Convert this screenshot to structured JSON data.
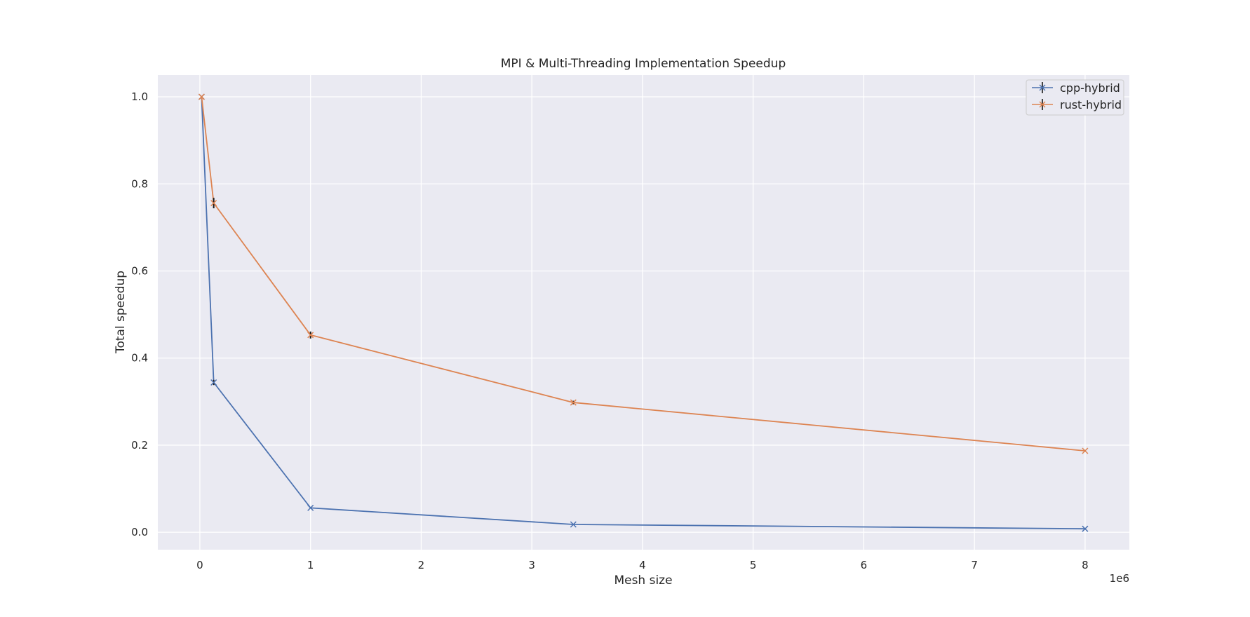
{
  "chart_data": {
    "type": "line",
    "title": "MPI & Multi-Threading Implementation Speedup",
    "xlabel": "Mesh size",
    "ylabel": "Total speedup",
    "x_offset_label": "1e6",
    "x_scale_factor": 1000000,
    "xlim": [
      -380000,
      8400000
    ],
    "ylim": [
      -0.04,
      1.05
    ],
    "xticks": [
      0,
      1000000,
      2000000,
      3000000,
      4000000,
      5000000,
      6000000,
      7000000,
      8000000
    ],
    "xtick_labels": [
      "0",
      "1",
      "2",
      "3",
      "4",
      "5",
      "6",
      "7",
      "8"
    ],
    "yticks": [
      0.0,
      0.2,
      0.4,
      0.6,
      0.8,
      1.0
    ],
    "ytick_labels": [
      "0.0",
      "0.2",
      "0.4",
      "0.6",
      "0.8",
      "1.0"
    ],
    "grid": true,
    "legend_position": "top-right",
    "series": [
      {
        "name": "cpp-hybrid",
        "color": "#4c72b0",
        "marker": "x",
        "x": [
          15625,
          125000,
          1000000,
          3375000,
          8000000
        ],
        "y": [
          1.0,
          0.344,
          0.056,
          0.018,
          0.008
        ],
        "yerr": [
          0.0,
          0.006,
          0.001,
          0.0005,
          0.0003
        ]
      },
      {
        "name": "rust-hybrid",
        "color": "#dd8452",
        "marker": "x",
        "x": [
          15625,
          125000,
          1000000,
          3375000,
          8000000
        ],
        "y": [
          1.0,
          0.756,
          0.453,
          0.298,
          0.187
        ],
        "yerr": [
          0.0,
          0.012,
          0.008,
          0.004,
          0.002
        ]
      }
    ]
  }
}
